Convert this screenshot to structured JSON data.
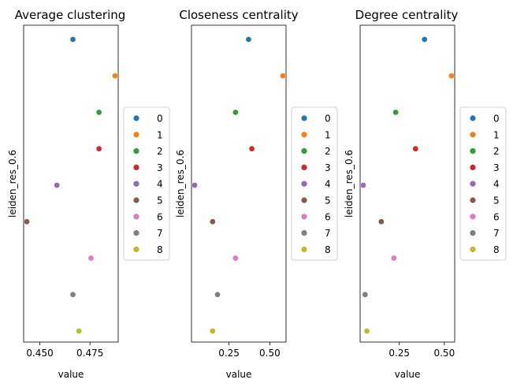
{
  "chart_data": [
    {
      "type": "scatter",
      "title": "Average clustering",
      "xlabel": "value",
      "ylabel": "leiden_res_0.6",
      "categories": [
        "0",
        "1",
        "2",
        "3",
        "4",
        "5",
        "6",
        "7",
        "8"
      ],
      "values": [
        0.4665,
        0.4875,
        0.4795,
        0.4795,
        0.4585,
        0.4435,
        0.4755,
        0.4665,
        0.4695
      ],
      "xticks": [
        "0.450",
        "0.475"
      ],
      "xtick_values": [
        0.45,
        0.475
      ],
      "xlim": [
        0.4435,
        0.4875
      ],
      "legend": "right"
    },
    {
      "type": "scatter",
      "title": "Closeness centrality",
      "xlabel": "value",
      "ylabel": "leiden_res_0.6",
      "categories": [
        "0",
        "1",
        "2",
        "3",
        "4",
        "5",
        "6",
        "7",
        "8"
      ],
      "values": [
        0.37,
        0.58,
        0.29,
        0.39,
        0.04,
        0.15,
        0.29,
        0.18,
        0.15
      ],
      "xticks": [
        "0.25",
        "0.50"
      ],
      "xtick_values": [
        0.25,
        0.5
      ],
      "xlim": [
        0.04,
        0.58
      ],
      "legend": "right"
    },
    {
      "type": "scatter",
      "title": "Degree centrality",
      "xlabel": "value",
      "ylabel": "leiden_res_0.6",
      "categories": [
        "0",
        "1",
        "2",
        "3",
        "4",
        "5",
        "6",
        "7",
        "8"
      ],
      "values": [
        0.39,
        0.54,
        0.23,
        0.34,
        0.05,
        0.15,
        0.22,
        0.06,
        0.07
      ],
      "xticks": [
        "0.25",
        "0.50"
      ],
      "xtick_values": [
        0.25,
        0.5
      ],
      "xlim": [
        0.05,
        0.54
      ],
      "legend": "right"
    }
  ],
  "legend_labels": [
    "0",
    "1",
    "2",
    "3",
    "4",
    "5",
    "6",
    "7",
    "8"
  ],
  "colors": [
    "#1f77b4",
    "#ff7f0e",
    "#2ca02c",
    "#d62728",
    "#9467bd",
    "#8c564b",
    "#e377c2",
    "#7f7f7f",
    "#bcbd22"
  ]
}
